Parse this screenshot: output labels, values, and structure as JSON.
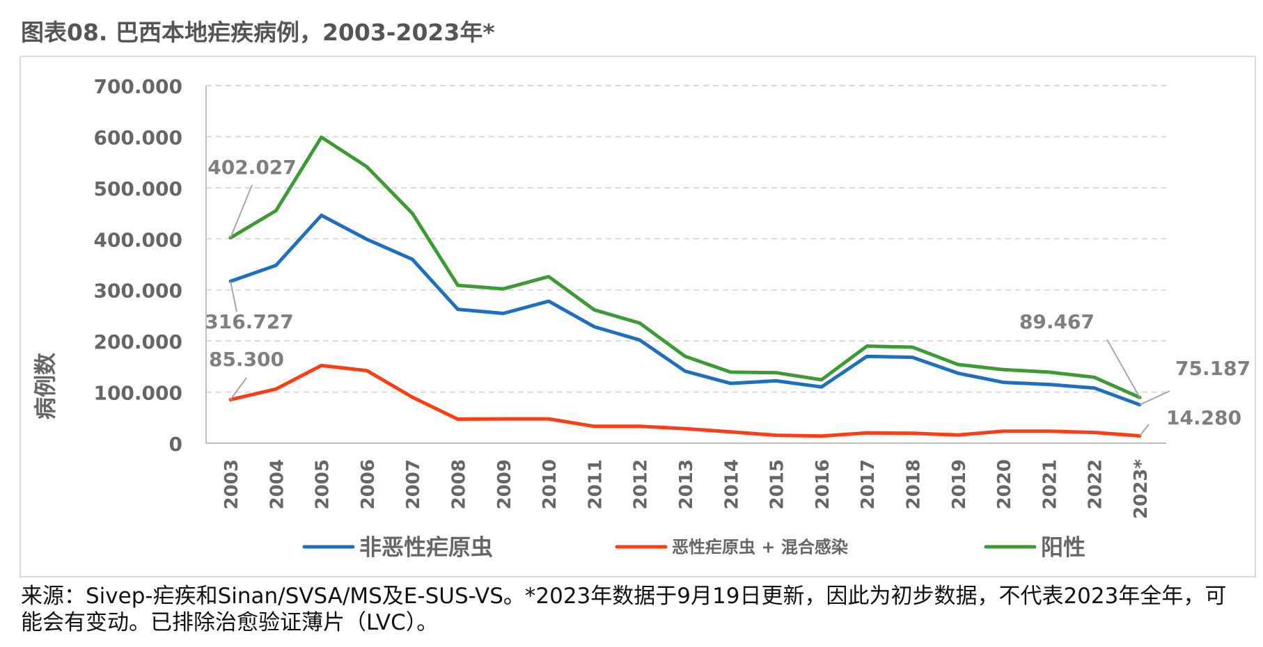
{
  "title": "图表08. 巴西本地疟疾病例，2003-2023年*",
  "source_note": "来源：Sivep-疟疾和Sinan/SVSA/MS及E-SUS-VS。*2023年数据于9月19日更新，因此为初步数据，不代表2023年全年，可能会有变动。已排除治愈验证薄片（LVC）。",
  "chart_data": {
    "type": "line",
    "ylabel": "病例数",
    "xlabel": "",
    "ylim": [
      0,
      700000
    ],
    "yticks": [
      "0",
      "100.000",
      "200.000",
      "300.000",
      "400.000",
      "500.000",
      "600.000",
      "700.000"
    ],
    "grid": true,
    "legend_position": "bottom",
    "categories": [
      "2003",
      "2004",
      "2005",
      "2006",
      "2007",
      "2008",
      "2009",
      "2010",
      "2011",
      "2012",
      "2013",
      "2014",
      "2015",
      "2016",
      "2017",
      "2018",
      "2019",
      "2020",
      "2021",
      "2022",
      "2023*"
    ],
    "series": [
      {
        "name": "非恶性疟原虫",
        "color": "#1f6fbf",
        "values": [
          316727,
          348000,
          446000,
          399000,
          360000,
          262000,
          254000,
          278000,
          228000,
          202000,
          141000,
          117000,
          122000,
          110000,
          170000,
          168000,
          137000,
          119000,
          115000,
          108000,
          75187
        ]
      },
      {
        "name": "恶性疟原虫 + 混合感染",
        "color": "#ff3d14",
        "values": [
          85300,
          106000,
          152000,
          142000,
          90000,
          47000,
          47500,
          47500,
          33000,
          33000,
          28500,
          22000,
          15500,
          14000,
          20000,
          19500,
          16000,
          23500,
          23500,
          21000,
          14280
        ]
      },
      {
        "name": "阳性",
        "color": "#3d9a35",
        "values": [
          402027,
          455000,
          599000,
          541000,
          450000,
          309000,
          302000,
          326000,
          261000,
          235000,
          170000,
          139000,
          138000,
          124000,
          190000,
          188000,
          154000,
          144000,
          139000,
          129000,
          89467
        ]
      }
    ],
    "annotations": [
      {
        "text": "402.027"
      },
      {
        "text": "316.727"
      },
      {
        "text": "85.300"
      },
      {
        "text": "89.467"
      },
      {
        "text": "75.187"
      },
      {
        "text": "14.280"
      }
    ]
  }
}
